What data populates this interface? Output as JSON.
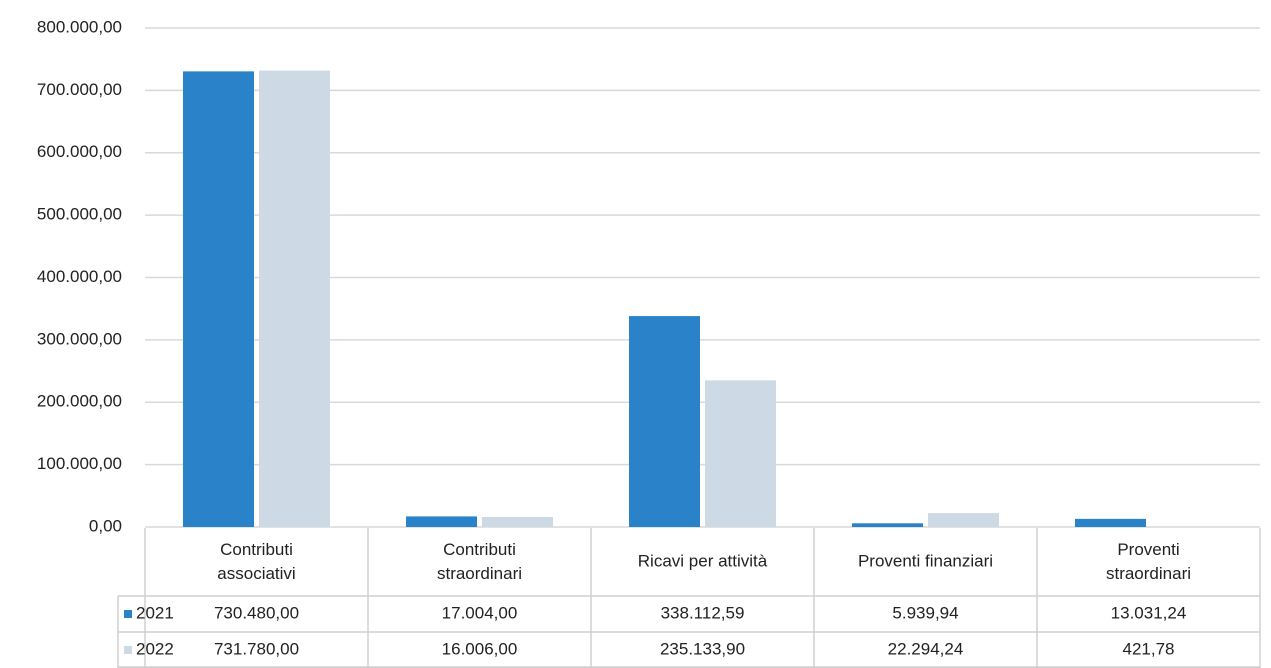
{
  "chart_data": {
    "type": "bar",
    "categories": [
      "Contributi associativi",
      "Contributi straordinari",
      "Ricavi per attività",
      "Proventi finanziari",
      "Proventi straordinari"
    ],
    "series": [
      {
        "name": "2021",
        "color": "#2a83c8",
        "values": [
          730480,
          17004,
          338112.59,
          5939.94,
          13031.24
        ],
        "value_labels": [
          "730.480,00",
          "17.004,00",
          "338.112,59",
          "5.939,94",
          "13.031,24"
        ]
      },
      {
        "name": "2022",
        "color": "#cdd9e5",
        "values": [
          731780,
          16006,
          235133.9,
          22294.24,
          421.78
        ],
        "value_labels": [
          "731.780,00",
          "16.006,00",
          "235.133,90",
          "22.294,24",
          "421,78"
        ]
      }
    ],
    "ylim": [
      0,
      800000
    ],
    "yticks": [
      {
        "value": 0,
        "label": "0,00"
      },
      {
        "value": 100000,
        "label": "100.000,00"
      },
      {
        "value": 200000,
        "label": "200.000,00"
      },
      {
        "value": 300000,
        "label": "300.000,00"
      },
      {
        "value": 400000,
        "label": "400.000,00"
      },
      {
        "value": 500000,
        "label": "500.000,00"
      },
      {
        "value": 600000,
        "label": "600.000,00"
      },
      {
        "value": 700000,
        "label": "700.000,00"
      },
      {
        "value": 800000,
        "label": "800.000,00"
      }
    ],
    "grid": true,
    "data_table": true
  }
}
